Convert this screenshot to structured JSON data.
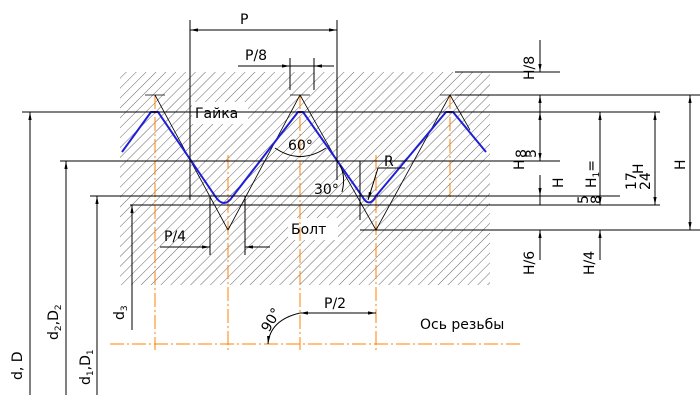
{
  "labels": {
    "P": "P",
    "P8": "P/8",
    "P4": "P/4",
    "P2": "P/2",
    "nut": "Гайка",
    "bolt": "Болт",
    "angle60": "60°",
    "angle30": "30°",
    "angle90": "90°",
    "R": "R",
    "axis": "Ось резьбы",
    "H8": "H/8",
    "H6": "H/6",
    "H4": "H/4",
    "H": "H",
    "d3": "d",
    "d3_sub": "3",
    "dD": "d, D",
    "d2D2_a": "d",
    "d2D2_sub1": "2",
    "d2D2_b": ",D",
    "d2D2_sub2": "2",
    "d1D1_a": "d",
    "d1D1_sub1": "1",
    "d1D1_b": ",D",
    "d1D1_sub2": "1",
    "frac38_num": "3",
    "frac38_den": "8",
    "frac38_tail": "H",
    "H1_main": "H",
    "H1_sub": "1",
    "H1_eq": "=",
    "frac58_num": "5",
    "frac58_den": "8",
    "frac58_tail": "H",
    "frac1724_num": "17",
    "frac1724_den": "24",
    "frac1724_tail": "H"
  },
  "colors": {
    "profile": "#1f1fd8",
    "axis": "#ff8000",
    "lines": "#000000"
  }
}
